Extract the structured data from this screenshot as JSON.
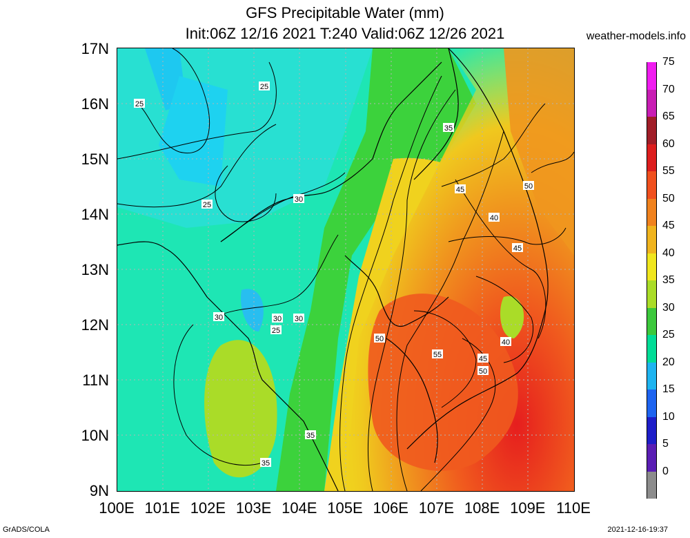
{
  "title_line1": "GFS Precipitable Water (mm)",
  "title_line2": "Init:06Z 12/16 2021 T:240 Valid:06Z 12/26 2021",
  "site": "weather-models.info",
  "footer_left": "GrADS/COLA",
  "footer_right": "2021-12-16-19:37",
  "map": {
    "lat_labels": [
      "17N",
      "16N",
      "15N",
      "14N",
      "13N",
      "12N",
      "11N",
      "10N",
      "9N"
    ],
    "lon_labels": [
      "100E",
      "101E",
      "102E",
      "103E",
      "104E",
      "105E",
      "106E",
      "107E",
      "108E",
      "109E",
      "110E"
    ],
    "contour_labels": [
      "25",
      "25",
      "25",
      "30",
      "30",
      "30",
      "30",
      "35",
      "35",
      "45",
      "40",
      "45",
      "50",
      "40",
      "50",
      "55",
      "45",
      "50",
      "25",
      "35"
    ]
  },
  "colorbar": {
    "labels": [
      "75",
      "70",
      "65",
      "60",
      "55",
      "50",
      "45",
      "40",
      "35",
      "30",
      "25",
      "20",
      "15",
      "10",
      "5",
      "0"
    ],
    "colors": [
      "#f01cf0",
      "#c81eb4",
      "#a01e28",
      "#dc1e1e",
      "#f0501e",
      "#f0821e",
      "#f0b41e",
      "#f0e61e",
      "#aadc28",
      "#3cc83c",
      "#00dc96",
      "#1eb4f0",
      "#1e64f0",
      "#1e1ec8",
      "#5a1eb4",
      "#8c8c8c"
    ]
  }
}
